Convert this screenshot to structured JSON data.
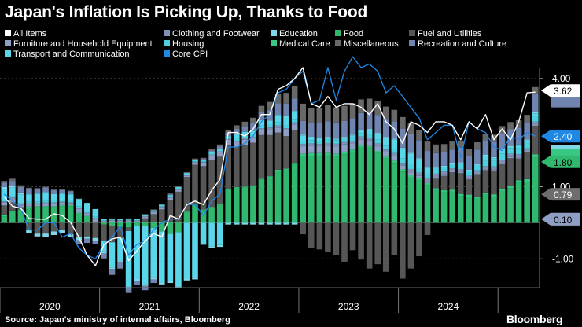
{
  "title": "Japan's Inflation Is Picking Up, Thanks to Food",
  "footer": {
    "source": "Source: Japan's ministry of internal affairs, Bloomberg",
    "brand": "Bloomberg"
  },
  "colors": {
    "all_items": "#ffffff",
    "clothing": "#7f91b7",
    "education": "#7fd8e8",
    "food": "#2fb86e",
    "fuel": "#565656",
    "furniture": "#8f9ec4",
    "housing": "#4fd0e0",
    "medical": "#39c784",
    "misc": "#686868",
    "recreation": "#6f85b0",
    "transport": "#5ad6ea",
    "core_cpi": "#1e88e5"
  },
  "chart_data": {
    "type": "bar",
    "title": "Japan's Inflation Is Picking Up, Thanks to Food",
    "x_axis_labels": [
      "2020",
      "2021",
      "2022",
      "2023",
      "2024"
    ],
    "y_tick_labels": [
      "4.00",
      "1.00",
      "-1.00"
    ],
    "y_ticks": [
      4,
      1,
      -1
    ],
    "ylim": [
      -1.8,
      4.3
    ],
    "grid": true,
    "legend_position": "top",
    "end_labels": [
      {
        "text": "3.62",
        "value": 3.62,
        "style": "white"
      },
      {
        "text": "0.79",
        "value": 0.79,
        "style": "grey"
      },
      {
        "text": "2.40",
        "value": 2.4,
        "style": "blue"
      },
      {
        "text": "1.80",
        "value": 1.8,
        "style": "green"
      },
      {
        "text": "0.10",
        "value": 0.1,
        "style": "slate"
      }
    ],
    "x_start": "2020-01",
    "series": [
      {
        "name": "Food",
        "key": "food",
        "values": [
          0.18,
          0.3,
          0.34,
          0.42,
          0.43,
          0.43,
          0.43,
          0.46,
          0.46,
          0.25,
          0.17,
          0.0,
          -0.05,
          -0.1,
          -0.12,
          -0.13,
          -0.1,
          -0.1,
          -0.14,
          -0.24,
          -0.31,
          -0.26,
          0.29,
          0.48,
          0.35,
          0.42,
          0.5,
          0.93,
          0.97,
          0.98,
          1.02,
          1.2,
          1.26,
          1.44,
          1.47,
          1.62,
          1.85,
          1.86,
          1.86,
          1.87,
          1.85,
          1.9,
          1.97,
          2.09,
          2.08,
          1.93,
          1.78,
          1.66,
          1.42,
          1.26,
          1.17,
          1.04,
          0.9,
          0.84,
          0.86,
          0.74,
          0.72,
          0.67,
          0.78,
          0.72,
          0.89,
          0.96,
          1.11,
          1.13,
          1.8
        ]
      },
      {
        "name": "Medical Care",
        "key": "medical",
        "values": [
          0.05,
          0.04,
          0.03,
          0.03,
          0.03,
          0.03,
          0.03,
          0.03,
          0.03,
          0.03,
          0.02,
          0.02,
          0.03,
          0.02,
          0.02,
          0.02,
          0.02,
          0.02,
          0.02,
          0.02,
          0.02,
          0.02,
          0.02,
          0.02,
          0.02,
          0.02,
          0.02,
          0.02,
          0.02,
          0.02,
          0.02,
          0.02,
          0.03,
          0.03,
          0.03,
          0.04,
          0.06,
          0.07,
          0.07,
          0.07,
          0.06,
          0.07,
          0.06,
          0.06,
          0.05,
          0.06,
          0.05,
          0.06,
          0.06,
          0.06,
          0.06,
          0.06,
          0.06,
          0.06,
          0.06,
          0.06,
          0.06,
          0.06,
          0.06,
          0.07,
          0.06,
          0.07,
          0.07,
          0.08,
          0.1
        ]
      },
      {
        "name": "Fuel and Utilities",
        "key": "fuel",
        "values": [
          0.25,
          0.22,
          0.06,
          -0.2,
          -0.3,
          -0.3,
          -0.24,
          -0.2,
          -0.32,
          -0.4,
          -0.38,
          -0.42,
          -0.44,
          -0.44,
          -0.3,
          -0.1,
          0.0,
          0.1,
          0.22,
          0.35,
          0.6,
          0.84,
          0.96,
          1.11,
          1.2,
          1.3,
          1.31,
          1.21,
          1.12,
          1.16,
          1.18,
          1.21,
          1.14,
          1.03,
          0.9,
          0.9,
          -0.32,
          -0.7,
          -0.74,
          -0.82,
          -0.9,
          -1.08,
          -0.76,
          -1.02,
          -1.27,
          -1.15,
          -1.36,
          -0.9,
          -1.55,
          -1.27,
          -0.93,
          -0.34,
          0.26,
          0.4,
          0.48,
          0.58,
          0.42,
          0.62,
          0.62,
          0.66,
          0.68,
          0.76,
          0.6,
          0.74,
          0.79
        ]
      },
      {
        "name": "Furniture and Household Equipment",
        "key": "furniture",
        "values": [
          0.08,
          0.1,
          0.05,
          0.06,
          0.05,
          0.07,
          0.08,
          0.07,
          0.05,
          0.1,
          0.06,
          0.08,
          0.01,
          0.04,
          0.04,
          0.04,
          0.03,
          0.04,
          0.05,
          0.06,
          0.07,
          0.05,
          0.04,
          0.06,
          0.1,
          0.12,
          0.12,
          0.14,
          0.12,
          0.14,
          0.12,
          0.14,
          0.15,
          0.14,
          0.16,
          0.16,
          0.2,
          0.2,
          0.18,
          0.2,
          0.2,
          0.2,
          0.17,
          0.16,
          0.15,
          0.13,
          0.12,
          0.12,
          0.1,
          0.08,
          0.07,
          0.06,
          0.05,
          0.04,
          0.03,
          0.03,
          0.02,
          0.02,
          0.02,
          0.02,
          0.03,
          0.03,
          0.03,
          0.03,
          0.03
        ]
      },
      {
        "name": "Clothing and Footwear",
        "key": "clothing",
        "values": [
          0.03,
          0.04,
          0.03,
          0.03,
          0.03,
          0.03,
          0.02,
          0.02,
          0.02,
          0.03,
          0.03,
          0.03,
          0.02,
          0.02,
          0.01,
          0.02,
          0.02,
          0.02,
          0.02,
          0.02,
          0.02,
          0.03,
          0.02,
          0.02,
          0.02,
          0.03,
          0.03,
          0.03,
          0.04,
          0.04,
          0.04,
          0.05,
          0.06,
          0.06,
          0.06,
          0.06,
          0.07,
          0.07,
          0.07,
          0.07,
          0.08,
          0.07,
          0.07,
          0.08,
          0.08,
          0.08,
          0.08,
          0.09,
          0.08,
          0.09,
          0.09,
          0.09,
          0.09,
          0.08,
          0.08,
          0.08,
          0.08,
          0.08,
          0.09,
          0.09,
          0.09,
          0.09,
          0.09,
          0.08,
          0.08
        ]
      },
      {
        "name": "Housing",
        "key": "housing",
        "values": [
          0.05,
          0.06,
          0.04,
          0.05,
          0.05,
          0.05,
          0.06,
          0.06,
          0.06,
          0.05,
          0.05,
          0.05,
          0.04,
          0.04,
          0.04,
          0.04,
          0.04,
          0.04,
          0.04,
          0.05,
          0.05,
          0.05,
          0.05,
          0.06,
          0.06,
          0.06,
          0.06,
          0.07,
          0.07,
          0.07,
          0.07,
          0.08,
          0.08,
          0.08,
          0.08,
          0.08,
          0.09,
          0.09,
          0.08,
          0.1,
          0.1,
          0.1,
          0.1,
          0.1,
          0.1,
          0.1,
          0.11,
          0.12,
          0.12,
          0.12,
          0.11,
          0.12,
          0.12,
          0.13,
          0.13,
          0.14,
          0.14,
          0.15,
          0.15,
          0.15,
          0.16,
          0.16,
          0.17,
          0.17,
          0.17
        ]
      },
      {
        "name": "Transport and Communication",
        "key": "transport",
        "values": [
          0.3,
          0.22,
          0.24,
          0.2,
          0.22,
          0.24,
          0.18,
          0.17,
          0.17,
          0.2,
          0.22,
          0.2,
          -0.3,
          -0.7,
          -0.62,
          -1.54,
          -1.46,
          -1.6,
          -1.38,
          -1.42,
          -1.31,
          -1.5,
          -1.55,
          -1.52,
          -0.56,
          -0.65,
          -0.62,
          0.0,
          0.12,
          0.11,
          0.1,
          0.14,
          0.11,
          0.21,
          0.26,
          0.24,
          0.15,
          0.08,
          0.08,
          0.05,
          0.02,
          0.02,
          0.05,
          0.07,
          0.12,
          0.17,
          0.22,
          0.26,
          0.28,
          0.3,
          0.26,
          0.16,
          0.03,
          0.0,
          0.0,
          0.02,
          0.0,
          0.0,
          0.14,
          0.08,
          0.1,
          0.03,
          0.07,
          0.05,
          0.06
        ]
      },
      {
        "name": "Education",
        "key": "education",
        "values": [
          0.05,
          0.06,
          0.05,
          -0.08,
          -0.08,
          -0.09,
          -0.1,
          -0.08,
          -0.08,
          -0.08,
          -0.06,
          -0.08,
          -0.06,
          -0.04,
          -0.04,
          -0.06,
          -0.05,
          -0.05,
          -0.05,
          -0.05,
          -0.05,
          -0.05,
          -0.05,
          -0.05,
          -0.05,
          -0.05,
          -0.05,
          -0.05,
          -0.05,
          -0.05,
          -0.05,
          -0.05,
          -0.05,
          -0.05,
          -0.05,
          -0.05,
          0.02,
          0.02,
          0.02,
          0.02,
          0.02,
          0.02,
          0.02,
          0.02,
          0.02,
          0.02,
          0.02,
          0.02,
          0.02,
          0.03,
          0.03,
          0.02,
          0.02,
          0.03,
          0.03,
          0.03,
          0.03,
          0.03,
          0.03,
          0.03,
          0.03,
          0.03,
          0.03,
          0.03,
          0.03
        ]
      },
      {
        "name": "Recreation and Culture",
        "key": "recreation",
        "values": [
          0.12,
          0.12,
          0.15,
          0.15,
          0.13,
          0.13,
          0.1,
          0.1,
          0.08,
          -0.11,
          -0.12,
          -0.08,
          -0.13,
          -0.15,
          -0.18,
          -0.1,
          -0.12,
          -0.12,
          -0.1,
          0.0,
          0.03,
          0.0,
          0.0,
          0.0,
          0.02,
          0.05,
          0.08,
          0.1,
          0.14,
          0.16,
          0.22,
          0.22,
          0.3,
          0.32,
          0.34,
          0.34,
          0.38,
          0.38,
          0.4,
          0.43,
          0.45,
          0.44,
          0.46,
          0.46,
          0.46,
          0.5,
          0.48,
          0.48,
          0.53,
          0.52,
          0.5,
          0.44,
          0.4,
          0.38,
          0.36,
          0.4,
          0.38,
          0.4,
          0.4,
          0.42,
          0.44,
          0.46,
          0.47,
          0.48,
          0.5
        ]
      },
      {
        "name": "Miscellaneous",
        "key": "misc",
        "values": [
          0.05,
          0.06,
          0.05,
          0.03,
          0.02,
          0.02,
          0.02,
          0.02,
          0.02,
          0.01,
          0.0,
          0.0,
          -0.02,
          -0.02,
          -0.02,
          -0.02,
          0.0,
          0.02,
          0.02,
          0.02,
          0.02,
          0.02,
          0.02,
          0.03,
          0.03,
          0.04,
          0.05,
          0.07,
          0.1,
          0.12,
          0.14,
          0.18,
          0.22,
          0.25,
          0.3,
          0.36,
          0.48,
          0.42,
          0.43,
          0.45,
          0.42,
          0.42,
          0.41,
          0.38,
          0.38,
          0.38,
          0.36,
          0.32,
          0.32,
          0.3,
          0.28,
          0.26,
          0.24,
          0.22,
          0.22,
          0.2,
          0.2,
          0.2,
          0.18,
          0.2,
          0.2,
          0.2,
          0.2,
          0.2,
          0.2
        ]
      },
      {
        "name": "All Items",
        "key": "all_items",
        "type": "line",
        "values": [
          0.72,
          0.46,
          0.4,
          0.12,
          0.1,
          0.1,
          0.25,
          0.2,
          0.01,
          -0.4,
          -0.9,
          -1.19,
          -0.61,
          -0.45,
          -0.4,
          -1.05,
          -0.78,
          -0.5,
          -0.3,
          -0.39,
          0.2,
          0.1,
          0.5,
          0.6,
          0.5,
          0.9,
          1.2,
          2.5,
          2.5,
          2.4,
          2.6,
          3.0,
          3.0,
          3.7,
          3.8,
          4.0,
          4.3,
          3.3,
          3.2,
          3.5,
          3.2,
          3.3,
          3.3,
          3.2,
          3.0,
          3.3,
          2.8,
          2.6,
          2.2,
          2.8,
          2.7,
          2.5,
          2.8,
          2.8,
          2.7,
          2.3,
          2.8,
          2.6,
          3.0,
          2.3,
          2.6,
          2.3,
          2.8,
          3.6,
          3.62
        ]
      },
      {
        "name": "Core CPI",
        "key": "core_cpi",
        "type": "line",
        "values": [
          0.8,
          0.6,
          0.4,
          -0.2,
          -0.2,
          0.0,
          0.0,
          -0.4,
          -0.3,
          -0.7,
          -0.9,
          -1.0,
          -0.6,
          -0.4,
          -0.1,
          -0.9,
          -0.6,
          -0.5,
          -0.2,
          0.0,
          0.1,
          0.1,
          0.5,
          0.5,
          0.2,
          0.6,
          0.8,
          2.1,
          2.1,
          2.2,
          2.4,
          2.8,
          3.0,
          3.6,
          3.7,
          4.0,
          4.2,
          3.3,
          3.4,
          4.3,
          3.4,
          4.2,
          4.6,
          4.3,
          4.4,
          4.2,
          3.6,
          3.8,
          3.5,
          3.2,
          2.9,
          2.3,
          2.5,
          2.7,
          2.7,
          1.8,
          2.8,
          2.6,
          2.5,
          2.1,
          2.0,
          2.4,
          2.3,
          2.5,
          2.4
        ]
      }
    ]
  },
  "legend": [
    {
      "label": "All Items",
      "color": "#ffffff"
    },
    {
      "label": "Clothing and Footwear",
      "color": "#7f91b7"
    },
    {
      "label": "Education",
      "color": "#7fd8e8"
    },
    {
      "label": "Food",
      "color": "#2fb86e"
    },
    {
      "label": "Fuel and Utilities",
      "color": "#565656"
    },
    {
      "label": "Furniture and Household Equipment",
      "color": "#8f9ec4"
    },
    {
      "label": "Housing",
      "color": "#4fd0e0"
    },
    {
      "label": "Medical Care",
      "color": "#39c784"
    },
    {
      "label": "Miscellaneous",
      "color": "#686868"
    },
    {
      "label": "Recreation and Culture",
      "color": "#6f85b0"
    },
    {
      "label": "Transport and Communication",
      "color": "#5ad6ea"
    },
    {
      "label": "Core CPI",
      "color": "#1e88e5"
    }
  ]
}
